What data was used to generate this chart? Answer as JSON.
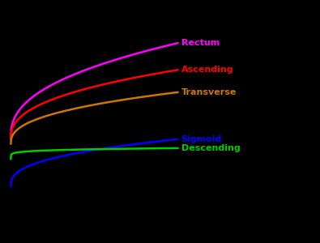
{
  "background_color": "#000000",
  "x_start": 1,
  "x_end": 20,
  "series": [
    {
      "label": "Rectum",
      "color": "#ff00ff",
      "y_at_start": 1.6,
      "y_at_end": 3.7,
      "power": 0.42
    },
    {
      "label": "Ascending",
      "color": "#ff0000",
      "y_at_start": 1.55,
      "y_at_end": 3.1,
      "power": 0.4
    },
    {
      "label": "Transverse",
      "color": "#cc7700",
      "y_at_start": 1.45,
      "y_at_end": 2.6,
      "power": 0.4
    },
    {
      "label": "Sigmoid",
      "color": "#0000ff",
      "y_at_start": 0.5,
      "y_at_end": 1.55,
      "power": 0.38
    },
    {
      "label": "Descending",
      "color": "#00cc00",
      "y_at_start": 1.1,
      "y_at_end": 1.35,
      "power": 0.15
    }
  ],
  "label_fontsize": 8,
  "ylim_min": -0.5,
  "ylim_max": 4.5,
  "xlim_min": 0.5,
  "xlim_max": 26
}
